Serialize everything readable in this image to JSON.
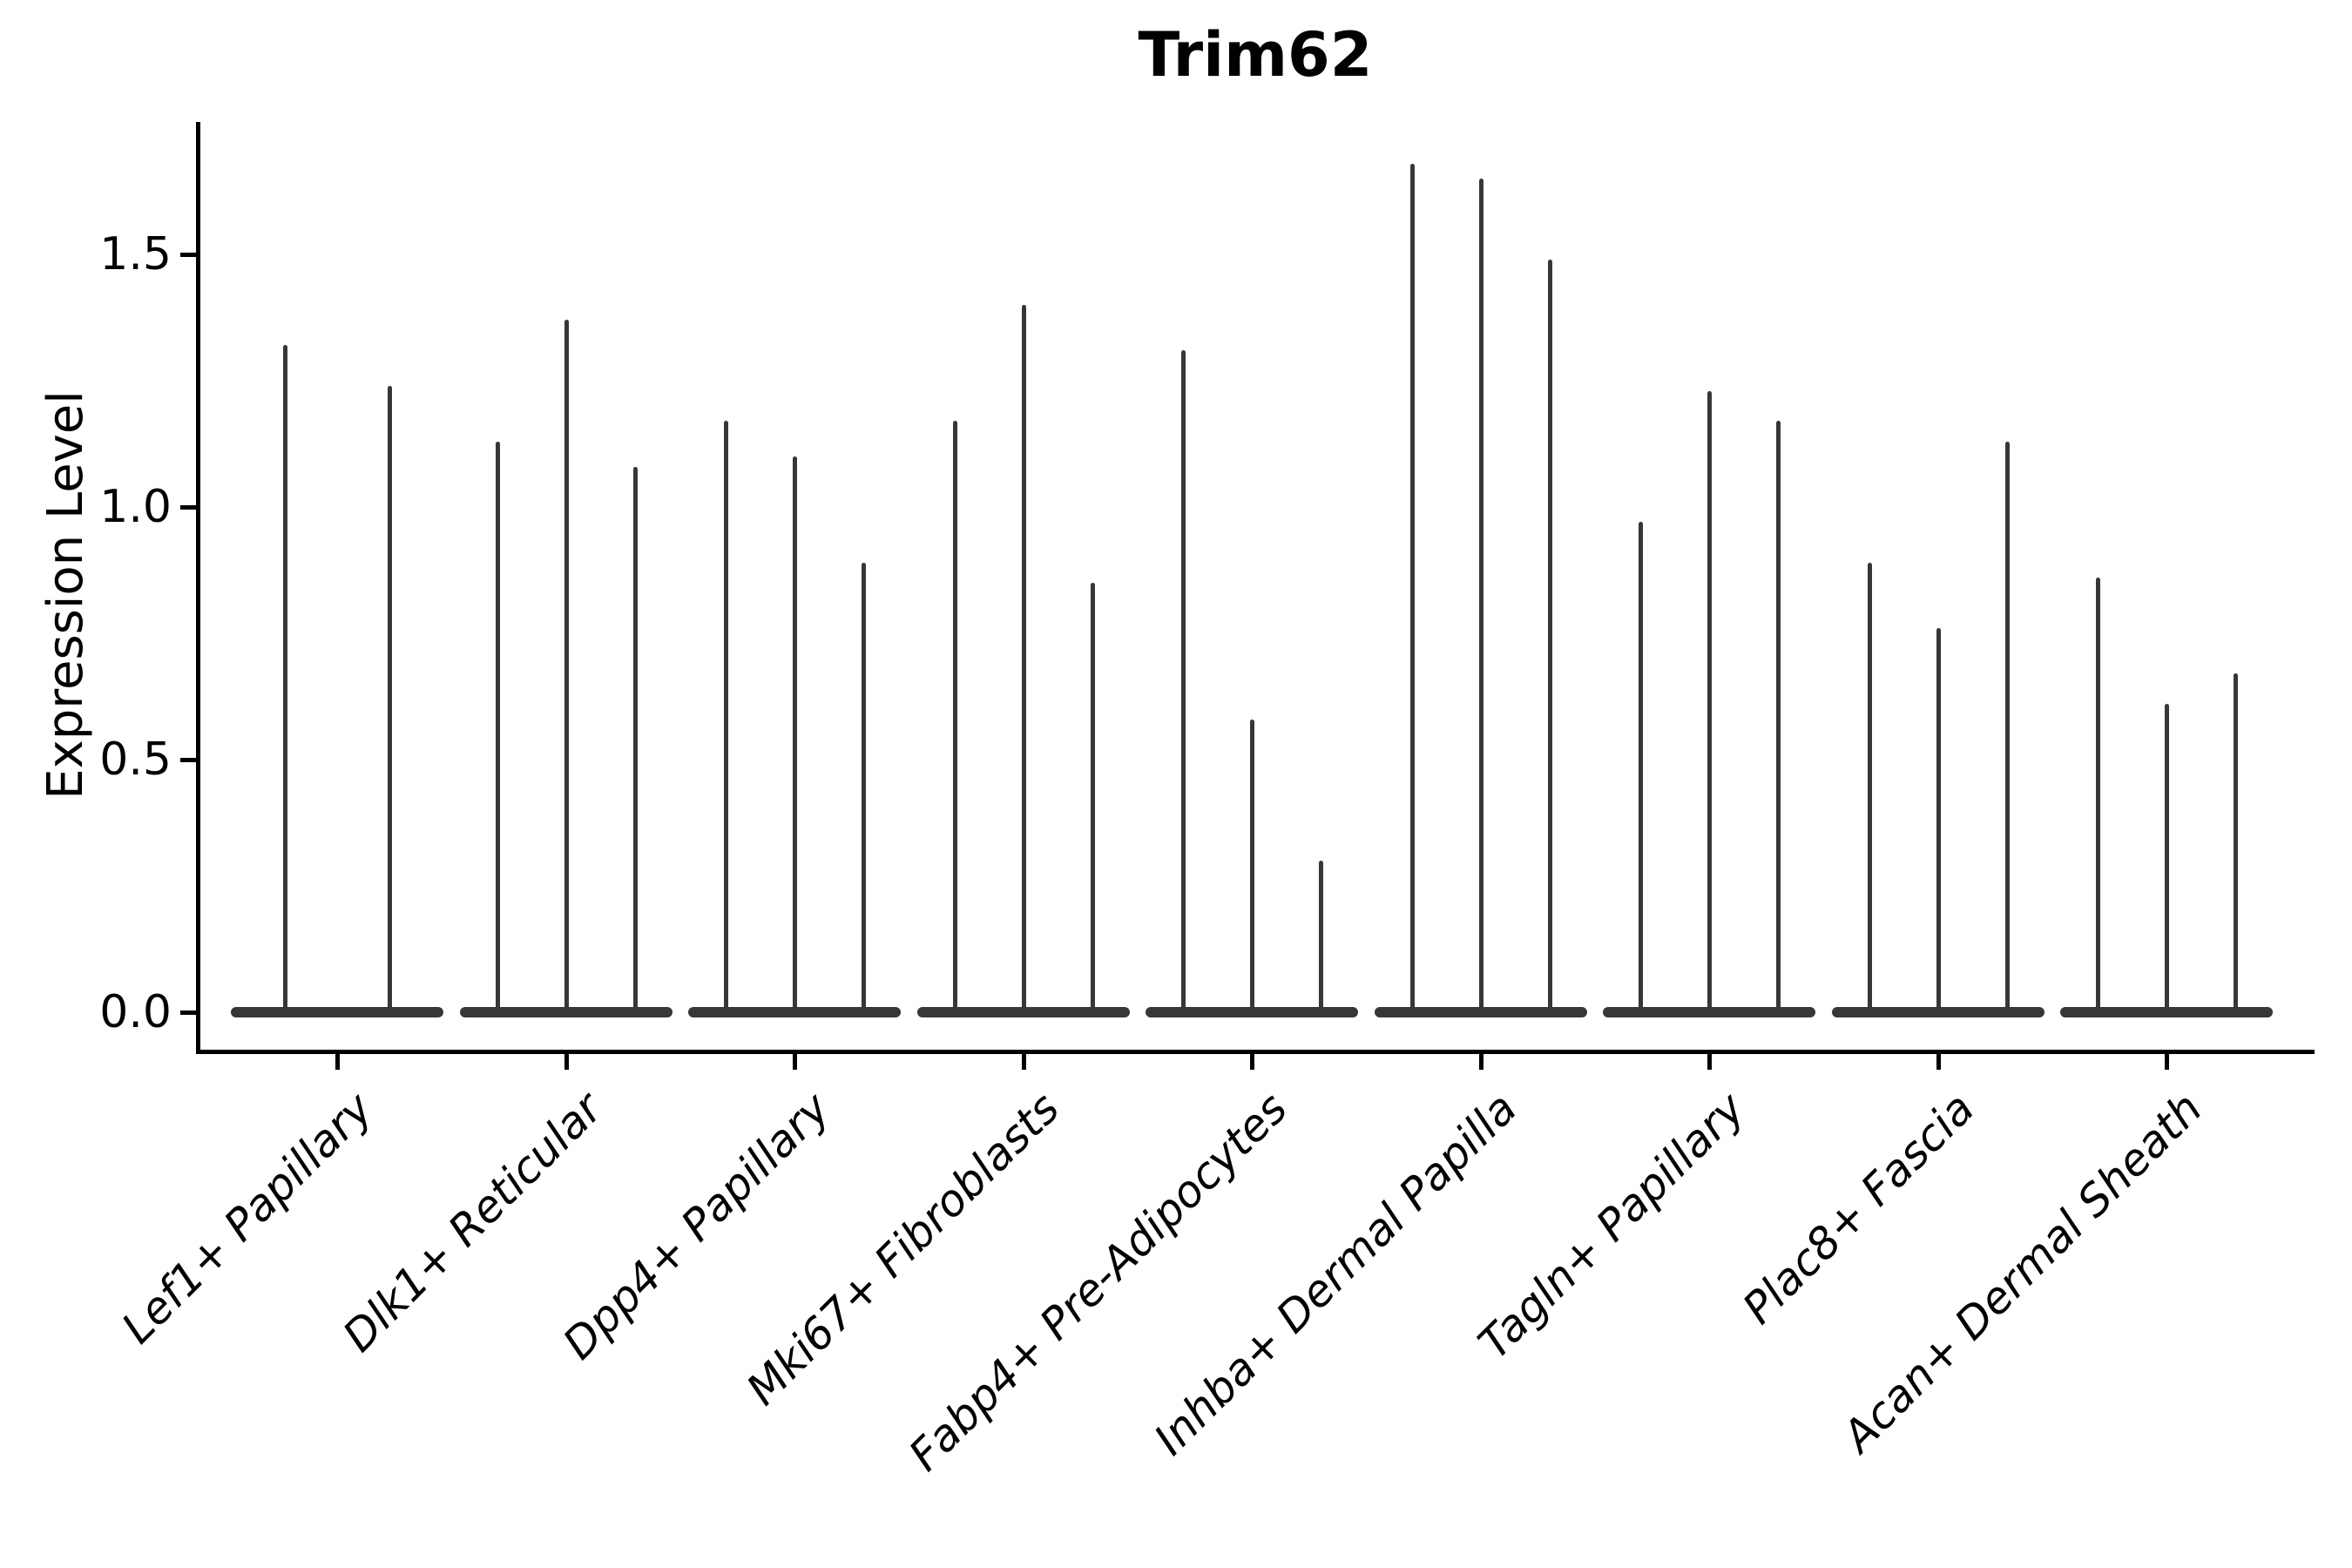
{
  "chart_data": {
    "type": "violin",
    "title": "Trim62",
    "xlabel": "",
    "ylabel": "Expression Level",
    "yticks": [
      0.0,
      0.5,
      1.0,
      1.5
    ],
    "ytick_labels": [
      "0.0",
      "0.5",
      "1.0",
      "1.5"
    ],
    "ylim": [
      -0.08,
      1.77
    ],
    "grid": false,
    "legend_position": "none",
    "categories": [
      "Lef1+ Papillary",
      "Dlk1+ Reticular",
      "Dpp4+ Papillary",
      "Mki67+ Fibroblasts",
      "Fabp4+ Pre-Adipocytes",
      "Inhba+ Dermal Papilla",
      "Tagln+ Papillary",
      "Plac8+ Fascia",
      "Acan+ Dermal Sheath"
    ],
    "groups": [
      {
        "category": "Lef1+ Papillary",
        "violin_max_expression": [
          1.32,
          1.24
        ]
      },
      {
        "category": "Dlk1+ Reticular",
        "violin_max_expression": [
          1.13,
          1.37,
          1.08
        ]
      },
      {
        "category": "Dpp4+ Papillary",
        "violin_max_expression": [
          1.17,
          1.1,
          0.89
        ]
      },
      {
        "category": "Mki67+ Fibroblasts",
        "violin_max_expression": [
          1.17,
          1.4,
          0.85
        ]
      },
      {
        "category": "Fabp4+ Pre-Adipocytes",
        "violin_max_expression": [
          1.31,
          0.58,
          0.3
        ]
      },
      {
        "category": "Inhba+ Dermal Papilla",
        "violin_max_expression": [
          1.68,
          1.65,
          1.49
        ]
      },
      {
        "category": "Tagln+ Papillary",
        "violin_max_expression": [
          0.97,
          1.23,
          1.17
        ]
      },
      {
        "category": "Plac8+ Fascia",
        "violin_max_expression": [
          0.89,
          0.76,
          1.13
        ]
      },
      {
        "category": "Acan+ Dermal Sheath",
        "violin_max_expression": [
          0.86,
          0.61,
          0.67
        ]
      }
    ],
    "violin_shape_note": "each violin: dense mass at 0 (flat wide base) with thin spike up to max",
    "colors": {
      "violin": "#373737",
      "axis": "#000000",
      "text": "#000000"
    }
  }
}
